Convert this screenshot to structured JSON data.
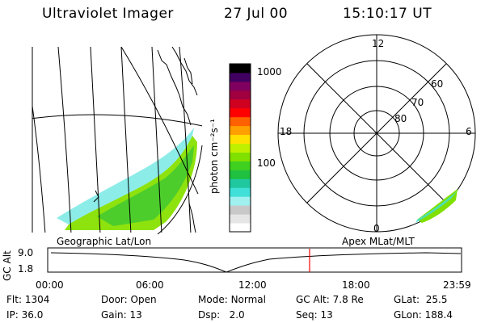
{
  "header": {
    "instrument": "Ultraviolet Imager",
    "date": "27 Jul 00",
    "time": "15:10:17 UT"
  },
  "geo_panel": {
    "label": "Geographic Lat/Lon"
  },
  "apex_panel": {
    "label": "Apex MLat/MLT",
    "mlt_labels": [
      "12",
      "18",
      "6",
      "0"
    ],
    "lat_labels": [
      "60",
      "70",
      "80"
    ]
  },
  "colorbar": {
    "unit": "photon cm⁻²s⁻¹",
    "ticks": [
      "1000",
      "100"
    ],
    "colors": [
      "#ffffff",
      "#e6e6e6",
      "#c8c8c8",
      "#a0f0f0",
      "#40e0d8",
      "#20c8a0",
      "#20c040",
      "#40d020",
      "#80e000",
      "#c0f000",
      "#ffe000",
      "#ffa000",
      "#ff6000",
      "#ff0000",
      "#d00020",
      "#a00040",
      "#800060",
      "#400060",
      "#000000"
    ]
  },
  "timeline": {
    "ylabel": "GC Alt",
    "y_ticks": [
      "9.0",
      "1.8"
    ],
    "x_ticks": [
      "00:00",
      "06:00",
      "12:00",
      "18:00",
      "23:59"
    ],
    "current_time_marker": "15:10"
  },
  "info": {
    "flt": {
      "label": "Flt:",
      "value": "1304"
    },
    "ip": {
      "label": "IP:",
      "value": "36.0"
    },
    "door": {
      "label": "Door:",
      "value": "Open"
    },
    "gain": {
      "label": "Gain:",
      "value": "13"
    },
    "mode": {
      "label": "Mode:",
      "value": "Normal"
    },
    "dsp": {
      "label": "Dsp:",
      "value": "2.0"
    },
    "gcalt": {
      "label": "GC Alt:",
      "value": "7.8 Re"
    },
    "seq": {
      "label": "Seq:",
      "value": "13"
    },
    "glat": {
      "label": "GLat:",
      "value": "25.5"
    },
    "glon": {
      "label": "GLon:",
      "value": "188.4"
    }
  }
}
